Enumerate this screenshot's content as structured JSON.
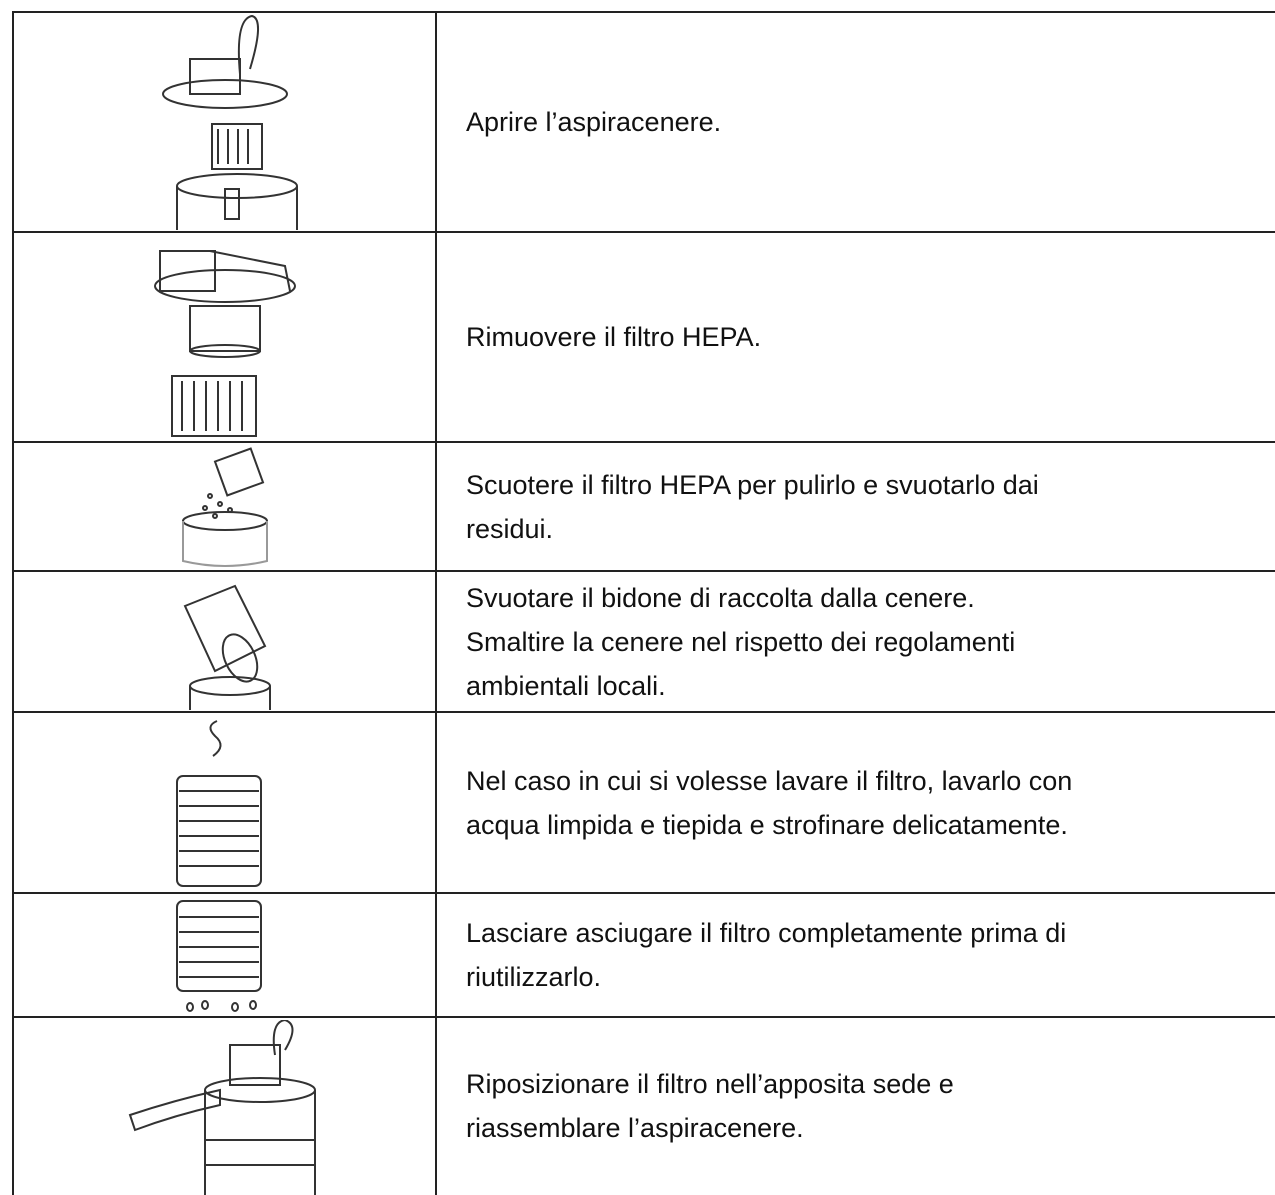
{
  "table": {
    "rows": [
      {
        "text": [
          "Aprire l’aspiracenere."
        ]
      },
      {
        "text": [
          "Rimuovere il filtro HEPA."
        ]
      },
      {
        "text": [
          "Scuotere il filtro HEPA per pulirlo e svuotarlo dai",
          "residui."
        ]
      },
      {
        "text": [
          "Svuotare il bidone di raccolta dalla cenere.",
          "Smaltire la cenere nel rispetto dei regolamenti",
          "ambientali locali."
        ]
      },
      {
        "text": [
          "Nel caso in cui si volesse lavare il filtro, lavarlo con",
          "acqua limpida e tiepida e strofinare delicatamente."
        ]
      },
      {
        "text": [
          "Lasciare asciugare il filtro completamente prima di",
          "riutilizzarlo."
        ]
      },
      {
        "text": [
          "Riposizionare il filtro nell’apposita sede e",
          "riassemblare l’aspiracenere."
        ]
      }
    ]
  }
}
